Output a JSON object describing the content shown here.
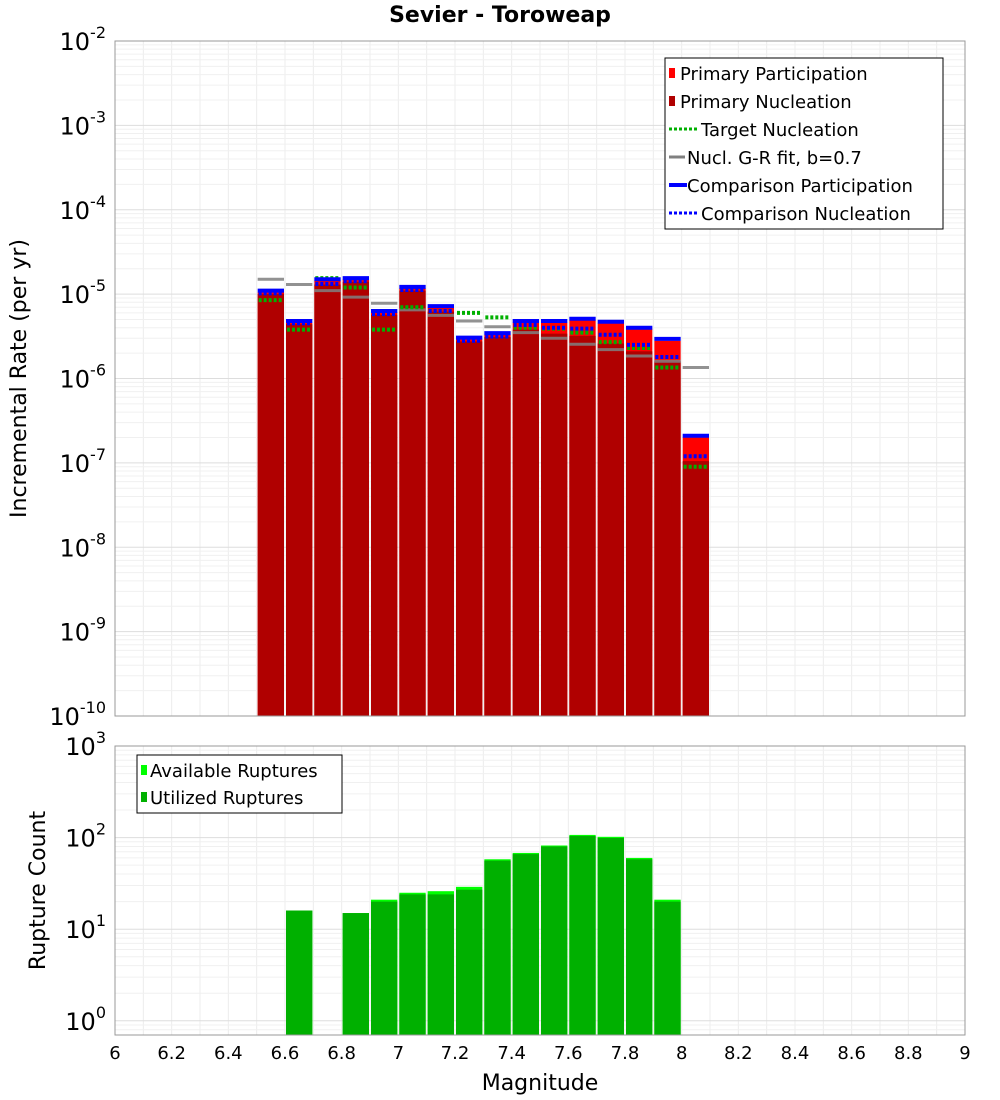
{
  "chart_data": [
    {
      "type": "bar",
      "title": "Sevier - Toroweap",
      "xlabel": "",
      "ylabel": "Incremental Rate (per yr)",
      "yscale": "log",
      "xlim": [
        6,
        9
      ],
      "ylim": [
        1e-10,
        0.01
      ],
      "ytick_labels": [
        {
          "base": "10",
          "exp": "-10",
          "v": 1e-10
        },
        {
          "base": "10",
          "exp": "-9",
          "v": 1e-09
        },
        {
          "base": "10",
          "exp": "-8",
          "v": 1e-08
        },
        {
          "base": "10",
          "exp": "-7",
          "v": 1e-07
        },
        {
          "base": "10",
          "exp": "-6",
          "v": 1e-06
        },
        {
          "base": "10",
          "exp": "-5",
          "v": 1e-05
        },
        {
          "base": "10",
          "exp": "-4",
          "v": 0.0001
        },
        {
          "base": "10",
          "exp": "-3",
          "v": 0.001
        },
        {
          "base": "10",
          "exp": "-2",
          "v": 0.01
        }
      ],
      "grid": true,
      "legend_position": "top-right",
      "bin_width": 0.1,
      "bin_centers": [
        6.55,
        6.65,
        6.75,
        6.85,
        6.95,
        7.05,
        7.15,
        7.25,
        7.35,
        7.45,
        7.55,
        7.65,
        7.75,
        7.85,
        7.95,
        8.05
      ],
      "series": [
        {
          "name": "Primary Participation",
          "kind": "bar",
          "color": "#ff0000",
          "values": [
            1.05e-05,
            4.6e-06,
            1.45e-05,
            1.5e-05,
            6.1e-06,
            1.18e-05,
            6.9e-06,
            2.95e-06,
            3.3e-06,
            4.6e-06,
            4.6e-06,
            4.9e-06,
            4.5e-06,
            3.9e-06,
            2.8e-06,
            2e-07
          ]
        },
        {
          "name": "Primary Nucleation",
          "kind": "bar",
          "color": "#b00000",
          "values": [
            1e-05,
            4.4e-06,
            1.3e-05,
            1.4e-05,
            5.7e-06,
            1.1e-05,
            6.2e-06,
            2.75e-06,
            3.1e-06,
            3.8e-06,
            3.4e-06,
            3.2e-06,
            2.6e-06,
            2.1e-06,
            1.6e-06,
            1.05e-07
          ]
        },
        {
          "name": "Target Nucleation",
          "kind": "dotted",
          "color": "#00b000",
          "values": [
            8.5e-06,
            3.8e-06,
            1.55e-05,
            1.2e-05,
            3.8e-06,
            7e-06,
            6.3e-06,
            6e-06,
            5.3e-06,
            4e-06,
            3.9e-06,
            3.5e-06,
            2.7e-06,
            2.3e-06,
            1.35e-06,
            9e-08
          ]
        },
        {
          "name": "Nucl. G-R fit, b=0.7",
          "kind": "dash",
          "color": "#808080",
          "values": [
            1.5e-05,
            1.3e-05,
            1.1e-05,
            9.2e-06,
            7.8e-06,
            6.5e-06,
            5.6e-06,
            4.8e-06,
            4.1e-06,
            3.5e-06,
            3e-06,
            2.55e-06,
            2.2e-06,
            1.85e-06,
            1.6e-06,
            1.35e-06
          ]
        },
        {
          "name": "Comparison Participation",
          "kind": "solid",
          "color": "#0000ff",
          "values": [
            1.1e-05,
            4.8e-06,
            1.5e-05,
            1.55e-05,
            6.3e-06,
            1.22e-05,
            7.2e-06,
            3.05e-06,
            3.45e-06,
            4.8e-06,
            4.8e-06,
            5.1e-06,
            4.7e-06,
            4e-06,
            2.95e-06,
            2.1e-07
          ]
        },
        {
          "name": "Comparison Nucleation",
          "kind": "dotted",
          "color": "#0000ff",
          "values": [
            1.02e-05,
            4.5e-06,
            1.32e-05,
            1.42e-05,
            5.8e-06,
            1.12e-05,
            6.3e-06,
            2.8e-06,
            3.15e-06,
            4.3e-06,
            4e-06,
            3.9e-06,
            3.3e-06,
            2.5e-06,
            1.8e-06,
            1.2e-07
          ]
        }
      ]
    },
    {
      "type": "bar",
      "title": "",
      "xlabel": "Magnitude",
      "ylabel": "Rupture Count",
      "yscale": "log",
      "xlim": [
        6,
        9
      ],
      "ylim": [
        0.7,
        1000
      ],
      "ytick_labels": [
        {
          "base": "10",
          "exp": "0",
          "v": 1
        },
        {
          "base": "10",
          "exp": "1",
          "v": 10
        },
        {
          "base": "10",
          "exp": "2",
          "v": 100
        },
        {
          "base": "10",
          "exp": "3",
          "v": 1000
        }
      ],
      "xtick_labels": [
        "6",
        "6.2",
        "6.4",
        "6.6",
        "6.8",
        "7",
        "7.2",
        "7.4",
        "7.6",
        "7.8",
        "8",
        "8.2",
        "8.4",
        "8.6",
        "8.8",
        "9"
      ],
      "grid": true,
      "legend_position": "top-left",
      "bin_width": 0.1,
      "bin_centers": [
        6.65,
        6.85,
        6.95,
        7.05,
        7.15,
        7.25,
        7.35,
        7.45,
        7.55,
        7.65,
        7.75,
        7.85,
        7.95
      ],
      "series": [
        {
          "name": "Available Ruptures",
          "color": "#00ff00",
          "values": [
            16,
            15,
            21,
            25,
            26,
            29,
            58,
            68,
            82,
            107,
            102,
            60,
            21
          ]
        },
        {
          "name": "Utilized Ruptures",
          "color": "#00b000",
          "values": [
            16,
            15,
            20,
            24,
            24,
            27,
            56,
            66,
            80,
            104,
            99,
            58,
            20
          ]
        }
      ]
    }
  ]
}
